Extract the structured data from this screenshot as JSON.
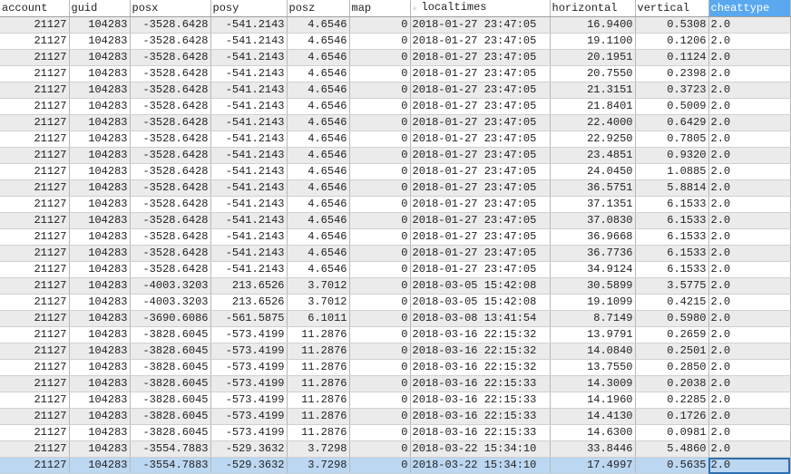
{
  "columns": [
    {
      "label": "account",
      "align": "num"
    },
    {
      "label": "guid",
      "align": "num"
    },
    {
      "label": "posx",
      "align": "num"
    },
    {
      "label": "posy",
      "align": "num"
    },
    {
      "label": "posz",
      "align": "num"
    },
    {
      "label": "map",
      "align": "num"
    },
    {
      "label": "localtimes",
      "align": "txt",
      "sorted": true
    },
    {
      "label": "horizontal",
      "align": "num"
    },
    {
      "label": "vertical",
      "align": "num"
    },
    {
      "label": "cheattype",
      "align": "txt",
      "active": true
    }
  ],
  "sort_icon": "sort-indicator-icon",
  "selected_row": 27,
  "selected_column": 9,
  "colors": {
    "header_active": "#5aa9f0",
    "row_alt": "#ebebeb",
    "selected_row": "#bcd7f2",
    "current_cell_border": "#2f6fae"
  },
  "rows": [
    [
      "21127",
      "104283",
      "-3528.6428",
      "-541.2143",
      "4.6546",
      "0",
      "2018-01-27 23:47:05",
      "16.9400",
      "0.5308",
      "2.0"
    ],
    [
      "21127",
      "104283",
      "-3528.6428",
      "-541.2143",
      "4.6546",
      "0",
      "2018-01-27 23:47:05",
      "19.1100",
      "0.1206",
      "2.0"
    ],
    [
      "21127",
      "104283",
      "-3528.6428",
      "-541.2143",
      "4.6546",
      "0",
      "2018-01-27 23:47:05",
      "20.1951",
      "0.1124",
      "2.0"
    ],
    [
      "21127",
      "104283",
      "-3528.6428",
      "-541.2143",
      "4.6546",
      "0",
      "2018-01-27 23:47:05",
      "20.7550",
      "0.2398",
      "2.0"
    ],
    [
      "21127",
      "104283",
      "-3528.6428",
      "-541.2143",
      "4.6546",
      "0",
      "2018-01-27 23:47:05",
      "21.3151",
      "0.3723",
      "2.0"
    ],
    [
      "21127",
      "104283",
      "-3528.6428",
      "-541.2143",
      "4.6546",
      "0",
      "2018-01-27 23:47:05",
      "21.8401",
      "0.5009",
      "2.0"
    ],
    [
      "21127",
      "104283",
      "-3528.6428",
      "-541.2143",
      "4.6546",
      "0",
      "2018-01-27 23:47:05",
      "22.4000",
      "0.6429",
      "2.0"
    ],
    [
      "21127",
      "104283",
      "-3528.6428",
      "-541.2143",
      "4.6546",
      "0",
      "2018-01-27 23:47:05",
      "22.9250",
      "0.7805",
      "2.0"
    ],
    [
      "21127",
      "104283",
      "-3528.6428",
      "-541.2143",
      "4.6546",
      "0",
      "2018-01-27 23:47:05",
      "23.4851",
      "0.9320",
      "2.0"
    ],
    [
      "21127",
      "104283",
      "-3528.6428",
      "-541.2143",
      "4.6546",
      "0",
      "2018-01-27 23:47:05",
      "24.0450",
      "1.0885",
      "2.0"
    ],
    [
      "21127",
      "104283",
      "-3528.6428",
      "-541.2143",
      "4.6546",
      "0",
      "2018-01-27 23:47:05",
      "36.5751",
      "5.8814",
      "2.0"
    ],
    [
      "21127",
      "104283",
      "-3528.6428",
      "-541.2143",
      "4.6546",
      "0",
      "2018-01-27 23:47:05",
      "37.1351",
      "6.1533",
      "2.0"
    ],
    [
      "21127",
      "104283",
      "-3528.6428",
      "-541.2143",
      "4.6546",
      "0",
      "2018-01-27 23:47:05",
      "37.0830",
      "6.1533",
      "2.0"
    ],
    [
      "21127",
      "104283",
      "-3528.6428",
      "-541.2143",
      "4.6546",
      "0",
      "2018-01-27 23:47:05",
      "36.9668",
      "6.1533",
      "2.0"
    ],
    [
      "21127",
      "104283",
      "-3528.6428",
      "-541.2143",
      "4.6546",
      "0",
      "2018-01-27 23:47:05",
      "36.7736",
      "6.1533",
      "2.0"
    ],
    [
      "21127",
      "104283",
      "-3528.6428",
      "-541.2143",
      "4.6546",
      "0",
      "2018-01-27 23:47:05",
      "34.9124",
      "6.1533",
      "2.0"
    ],
    [
      "21127",
      "104283",
      "-4003.3203",
      "213.6526",
      "3.7012",
      "0",
      "2018-03-05 15:42:08",
      "30.5899",
      "3.5775",
      "2.0"
    ],
    [
      "21127",
      "104283",
      "-4003.3203",
      "213.6526",
      "3.7012",
      "0",
      "2018-03-05 15:42:08",
      "19.1099",
      "0.4215",
      "2.0"
    ],
    [
      "21127",
      "104283",
      "-3690.6086",
      "-561.5875",
      "6.1011",
      "0",
      "2018-03-08 13:41:54",
      "8.7149",
      "0.5980",
      "2.0"
    ],
    [
      "21127",
      "104283",
      "-3828.6045",
      "-573.4199",
      "11.2876",
      "0",
      "2018-03-16 22:15:32",
      "13.9791",
      "0.2659",
      "2.0"
    ],
    [
      "21127",
      "104283",
      "-3828.6045",
      "-573.4199",
      "11.2876",
      "0",
      "2018-03-16 22:15:32",
      "14.0840",
      "0.2501",
      "2.0"
    ],
    [
      "21127",
      "104283",
      "-3828.6045",
      "-573.4199",
      "11.2876",
      "0",
      "2018-03-16 22:15:32",
      "13.7550",
      "0.2850",
      "2.0"
    ],
    [
      "21127",
      "104283",
      "-3828.6045",
      "-573.4199",
      "11.2876",
      "0",
      "2018-03-16 22:15:33",
      "14.3009",
      "0.2038",
      "2.0"
    ],
    [
      "21127",
      "104283",
      "-3828.6045",
      "-573.4199",
      "11.2876",
      "0",
      "2018-03-16 22:15:33",
      "14.1960",
      "0.2285",
      "2.0"
    ],
    [
      "21127",
      "104283",
      "-3828.6045",
      "-573.4199",
      "11.2876",
      "0",
      "2018-03-16 22:15:33",
      "14.4130",
      "0.1726",
      "2.0"
    ],
    [
      "21127",
      "104283",
      "-3828.6045",
      "-573.4199",
      "11.2876",
      "0",
      "2018-03-16 22:15:33",
      "14.6300",
      "0.0981",
      "2.0"
    ],
    [
      "21127",
      "104283",
      "-3554.7883",
      "-529.3632",
      "3.7298",
      "0",
      "2018-03-22 15:34:10",
      "33.8446",
      "5.4860",
      "2.0"
    ],
    [
      "21127",
      "104283",
      "-3554.7883",
      "-529.3632",
      "3.7298",
      "0",
      "2018-03-22 15:34:10",
      "17.4997",
      "0.5635",
      "2.0"
    ]
  ]
}
